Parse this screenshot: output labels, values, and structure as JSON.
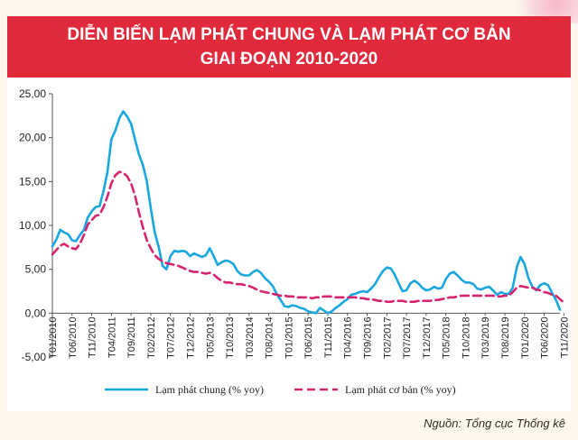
{
  "header": {
    "title_line1": "DIỄN BIẾN LẠM PHÁT CHUNG VÀ LẠM PHÁT CƠ BẢN",
    "title_line2": "GIAI ĐOẠN 2010-2020"
  },
  "source": "Nguồn: Tổng cục Thống kê",
  "colors": {
    "general": "#1aa7e0",
    "core": "#d6246e",
    "title_bg": "#e02a3c"
  },
  "chart_data": {
    "type": "line",
    "x_tick_labels": [
      "T01/2010",
      "T06/2010",
      "T11/2010",
      "T04/2011",
      "T09/2011",
      "T02/2012",
      "T07/2012",
      "T12/2012",
      "T05/2013",
      "T10/2013",
      "T03/2014",
      "T08/2014",
      "T01/2015",
      "T06/2015",
      "T11/2015",
      "T04/2016",
      "T09/2016",
      "T02/2017",
      "T07/2017",
      "T12/2017",
      "T05/2018",
      "T10/2018",
      "T03/2019",
      "T08/2019",
      "T01/2020",
      "T06/2020",
      "T11/2020"
    ],
    "y_tick_labels": [
      "25,00",
      "20,00",
      "15,00",
      "10,00",
      "5,00",
      "0,00",
      "-5,00"
    ],
    "ylim": [
      -5,
      25
    ],
    "series": [
      {
        "name": "Lạm phát chung (% yoy)",
        "style": "solid",
        "values": [
          7.6,
          8.4,
          9.5,
          9.2,
          9.0,
          8.3,
          8.2,
          8.9,
          9.5,
          10.9,
          11.6,
          12.1,
          12.2,
          13.9,
          16.1,
          19.8,
          20.8,
          22.2,
          23.0,
          22.4,
          21.6,
          19.8,
          18.1,
          16.9,
          15.0,
          12.0,
          9.2,
          7.6,
          5.4,
          5.0,
          6.5,
          7.1,
          7.0,
          7.1,
          7.0,
          6.5,
          6.8,
          6.6,
          6.4,
          6.6,
          7.4,
          6.5,
          5.5,
          5.8,
          6.0,
          5.9,
          5.6,
          4.8,
          4.4,
          4.3,
          4.3,
          4.7,
          4.9,
          4.6,
          4.0,
          3.6,
          3.1,
          2.2,
          1.5,
          0.8,
          0.7,
          0.9,
          0.8,
          0.6,
          0.5,
          0.2,
          0.1,
          0.0,
          0.6,
          0.3,
          0.0,
          0.2,
          0.6,
          0.9,
          1.3,
          1.6,
          2.1,
          2.2,
          2.4,
          2.5,
          2.4,
          2.8,
          3.3,
          4.1,
          4.8,
          5.2,
          5.1,
          4.4,
          3.4,
          2.5,
          2.6,
          3.4,
          3.7,
          3.4,
          2.9,
          2.6,
          2.7,
          3.0,
          2.8,
          2.9,
          3.9,
          4.5,
          4.7,
          4.3,
          3.8,
          3.5,
          3.5,
          3.3,
          2.8,
          2.7,
          2.9,
          3.0,
          2.6,
          2.1,
          2.4,
          2.2,
          2.2,
          2.9,
          5.2,
          6.4,
          5.6,
          4.0,
          3.0,
          2.6,
          3.2,
          3.4,
          3.2,
          2.3,
          1.5,
          0.4
        ]
      },
      {
        "name": "Lạm phát cơ bản (% yoy)",
        "style": "dashed",
        "values": [
          6.7,
          7.2,
          7.7,
          7.9,
          7.6,
          7.4,
          7.3,
          7.9,
          8.9,
          10.1,
          10.6,
          11.1,
          11.2,
          12.1,
          13.3,
          14.8,
          15.7,
          16.1,
          16.0,
          15.6,
          14.8,
          13.4,
          11.5,
          9.8,
          8.3,
          7.4,
          6.6,
          6.2,
          5.9,
          5.7,
          5.6,
          5.5,
          5.4,
          5.2,
          5.0,
          4.8,
          4.7,
          4.7,
          4.6,
          4.5,
          4.6,
          4.4,
          4.0,
          3.7,
          3.5,
          3.5,
          3.4,
          3.3,
          3.3,
          3.2,
          3.1,
          2.9,
          2.7,
          2.5,
          2.4,
          2.3,
          2.2,
          2.1,
          2.0,
          2.0,
          1.9,
          1.9,
          1.8,
          1.8,
          1.8,
          1.8,
          1.7,
          1.8,
          1.8,
          1.9,
          1.9,
          1.9,
          1.8,
          1.8,
          1.8,
          1.8,
          1.8,
          1.8,
          1.7,
          1.7,
          1.6,
          1.6,
          1.5,
          1.4,
          1.4,
          1.3,
          1.3,
          1.4,
          1.4,
          1.4,
          1.3,
          1.3,
          1.3,
          1.4,
          1.4,
          1.4,
          1.4,
          1.5,
          1.5,
          1.6,
          1.7,
          1.8,
          1.8,
          1.9,
          2.0,
          2.0,
          2.0,
          2.0,
          2.0,
          2.0,
          2.0,
          2.0,
          2.0,
          1.9,
          1.9,
          2.0,
          2.0,
          2.4,
          2.9,
          3.1,
          3.0,
          2.9,
          2.9,
          2.7,
          2.6,
          2.4,
          2.3,
          2.1,
          2.0,
          1.6,
          1.2
        ]
      }
    ],
    "legend_position": "bottom",
    "grid": false
  }
}
